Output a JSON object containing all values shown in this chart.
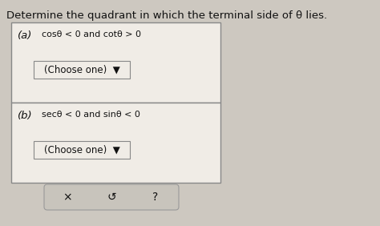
{
  "title": "Determine the quadrant in which the terminal side of θ lies.",
  "part_a_label": "(a)",
  "part_a_cond_1": "cosθ < 0 and cotθ > 0",
  "part_b_label": "(b)",
  "part_b_cond_1": "secθ < 0 and sinθ < 0",
  "dropdown_text": "(Choose one)  ▼",
  "bg_color": "#cdc8c0",
  "box_bg": "#f0ece6",
  "box_border": "#888888",
  "dropdown_bg": "#f0ece6",
  "dropdown_border": "#888888",
  "button_bg": "#c8c4bc",
  "button_border": "#999999",
  "text_color": "#111111",
  "title_fontsize": 9.5,
  "label_fontsize": 9.5,
  "cond_fontsize": 8.0,
  "dropdown_fontsize": 8.5,
  "btn_fontsize": 10
}
